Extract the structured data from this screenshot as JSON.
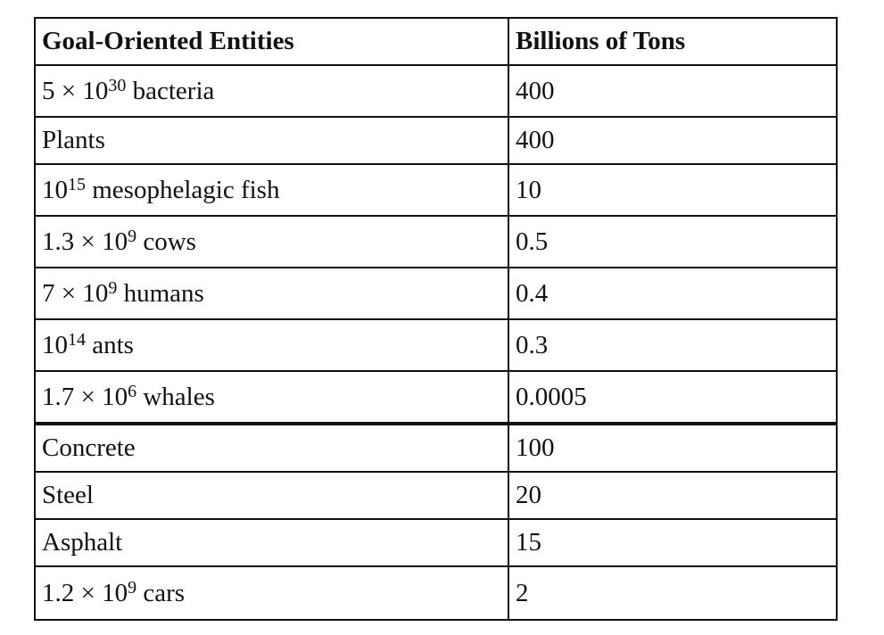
{
  "table": {
    "headers": [
      "Goal-Oriented Entities",
      "Billions of Tons"
    ],
    "rows": [
      {
        "count_coeff": "5 × 10",
        "count_exp": "30",
        "name": " bacteria",
        "value": "400"
      },
      {
        "count_coeff": "",
        "count_exp": "",
        "name": "Plants",
        "value": "400"
      },
      {
        "count_coeff": "10",
        "count_exp": "15",
        "name": " mesophelagic fish",
        "value": "10"
      },
      {
        "count_coeff": "1.3 × 10",
        "count_exp": "9",
        "name": " cows",
        "value": "0.5"
      },
      {
        "count_coeff": "7 × 10",
        "count_exp": "9",
        "name": " humans",
        "value": "0.4"
      },
      {
        "count_coeff": "10",
        "count_exp": "14",
        "name": " ants",
        "value": "0.3"
      },
      {
        "count_coeff": "1.7 × 10",
        "count_exp": "6",
        "name": " whales",
        "value": "0.0005"
      },
      {
        "count_coeff": "",
        "count_exp": "",
        "name": "Concrete",
        "value": "100"
      },
      {
        "count_coeff": "",
        "count_exp": "",
        "name": "Steel",
        "value": "20"
      },
      {
        "count_coeff": "",
        "count_exp": "",
        "name": "Asphalt",
        "value": "15"
      },
      {
        "count_coeff": "1.2 × 10",
        "count_exp": "9",
        "name": " cars",
        "value": "2"
      }
    ]
  }
}
